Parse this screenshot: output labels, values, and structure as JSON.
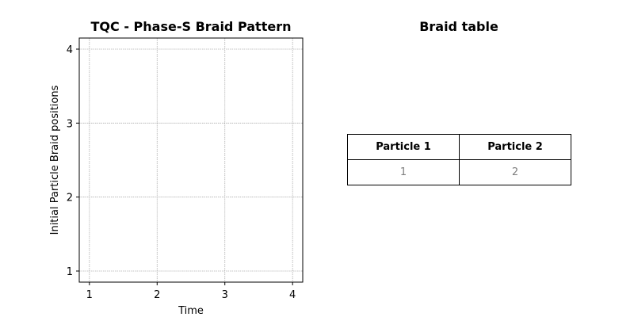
{
  "chart_data": [
    {
      "type": "line",
      "title": "TQC - Phase-S Braid Pattern",
      "xlabel": "Time",
      "ylabel": "Initial Particle Braid positions",
      "xlim": [
        0.85,
        4.15
      ],
      "ylim": [
        0.85,
        4.15
      ],
      "xticks": [
        "1",
        "2",
        "3",
        "4"
      ],
      "yticks": [
        "1",
        "2",
        "3",
        "4"
      ],
      "grid": true,
      "series": []
    },
    {
      "type": "table",
      "title": "Braid table",
      "columns": [
        "Particle 1",
        "Particle 2"
      ],
      "rows": [
        [
          "1",
          "2"
        ]
      ]
    }
  ]
}
